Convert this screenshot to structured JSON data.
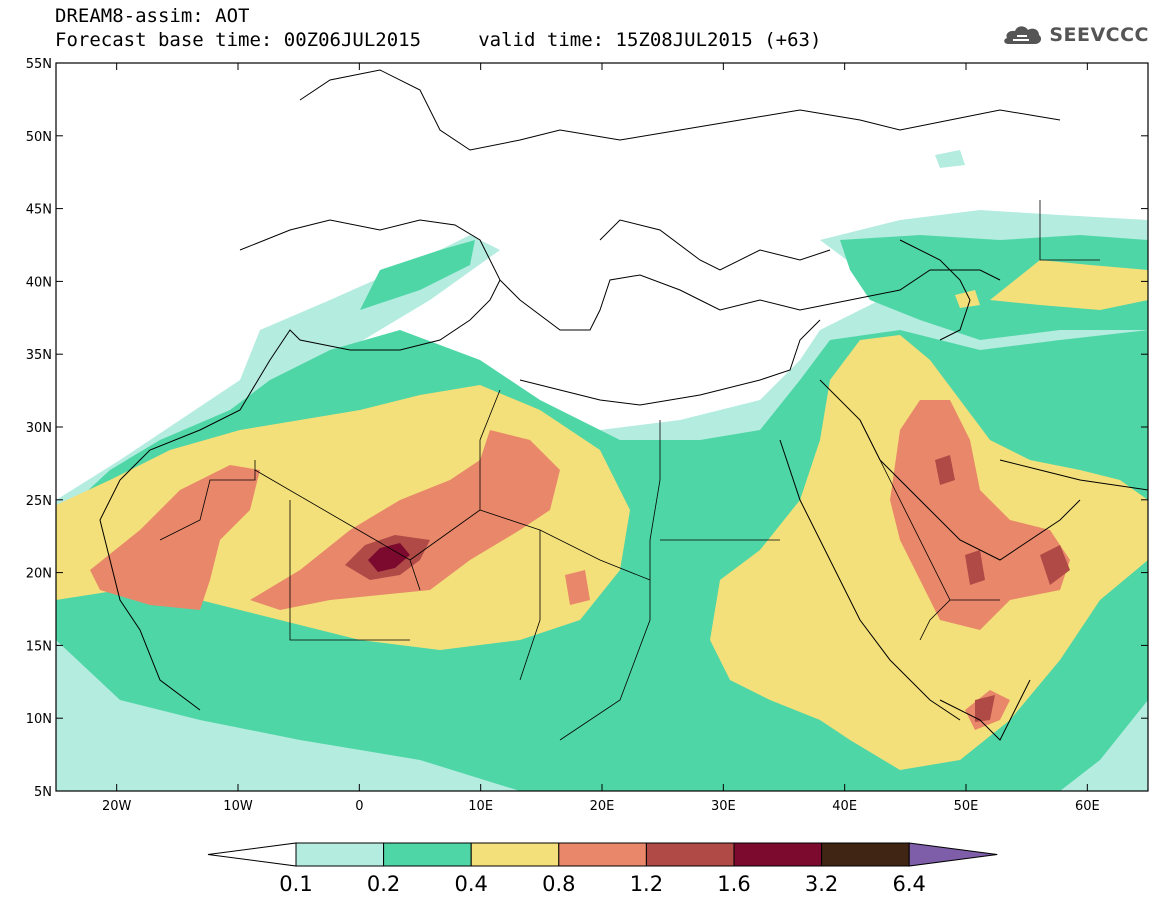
{
  "title": {
    "line1": "DREAM8-assim: AOT",
    "line2": "Forecast base time: 00Z06JUL2015     valid time: 15Z08JUL2015 (+63)"
  },
  "logo": {
    "text": "SEEVCCC",
    "icon": "cloud-icon",
    "color": "#555555"
  },
  "map": {
    "lon_range": [
      -25,
      65
    ],
    "lat_range": [
      5,
      55
    ],
    "lon_ticks": [
      "20W",
      "10W",
      "0",
      "10E",
      "20E",
      "30E",
      "40E",
      "50E",
      "60E"
    ],
    "lat_ticks": [
      "5N",
      "10N",
      "15N",
      "20N",
      "25N",
      "30N",
      "35N",
      "40N",
      "45N",
      "50N",
      "55N"
    ]
  },
  "colorbar": {
    "labels": [
      "0.1",
      "0.2",
      "0.4",
      "0.8",
      "1.2",
      "1.6",
      "3.2",
      "6.4"
    ],
    "colors": [
      "#ffffff",
      "#b4ece0",
      "#4fd6a6",
      "#f4e07a",
      "#e8876a",
      "#b04a46",
      "#7c0a2e",
      "#402414",
      "#7e5ea8"
    ]
  }
}
